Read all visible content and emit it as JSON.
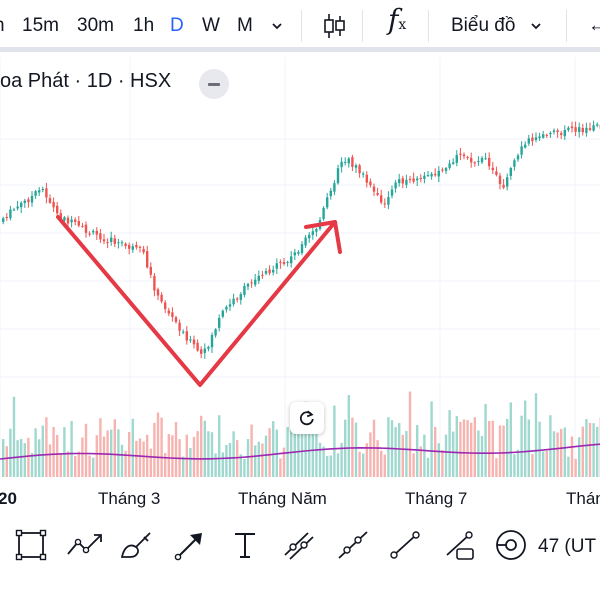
{
  "toolbar": {
    "intervals": [
      "h",
      "15m",
      "30m",
      "1h",
      "D",
      "W",
      "M"
    ],
    "active_interval": "D",
    "indicators_label": "f",
    "indicators_sub": "x",
    "chart_type_label": "Biểu đồ",
    "back_label": "←"
  },
  "legend": {
    "symbol_text": "oa Phát · 1D · HSX"
  },
  "x_axis": {
    "labels": [
      "20",
      "Tháng 3",
      "Tháng Năm",
      "Tháng 7",
      "Thán"
    ]
  },
  "drawing_tools": [
    "rectangle-tool",
    "path-tool",
    "brush-tool",
    "arrow-tool",
    "text-tool",
    "parallel-channel-tool",
    "ray-tool",
    "trend-line-tool",
    "info-line-tool",
    "visibility-tool"
  ],
  "timezone_label": "47 (UT",
  "colors": {
    "up": "#26a69a",
    "down": "#ef5350",
    "volume_up": "#9ed8cf",
    "volume_down": "#f6b3b0",
    "volume_ma": "#9c27b0",
    "annotation": "#e53945",
    "accent": "#2962ff"
  },
  "chart_data": {
    "type": "candlestick",
    "symbol": "oa Phát",
    "interval": "1D",
    "exchange": "HSX",
    "x_labels": [
      "20",
      "Tháng 3",
      "Tháng Năm",
      "Tháng 7",
      "Thán"
    ],
    "price_trend_anchors": [
      {
        "x": "20",
        "level": 0.72
      },
      {
        "x": "Tháng 3",
        "level": 0.7
      },
      {
        "x": "Tháng Năm",
        "level": 0.5
      },
      {
        "x": "Tháng 7",
        "level": 0.86
      },
      {
        "x": "Thán",
        "level": 0.97
      }
    ],
    "annotation": "V-shaped recovery arrows drawn on chart",
    "volume_ma": true
  }
}
